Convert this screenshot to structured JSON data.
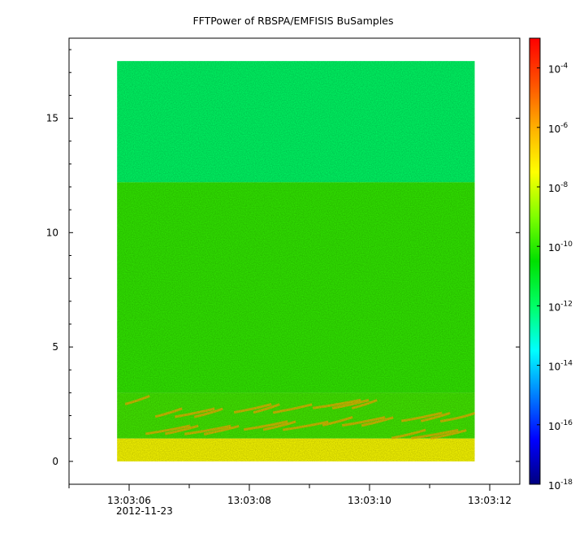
{
  "chart_data": {
    "type": "heatmap",
    "title": "FFTPower of RBSPA/EMFISIS  BuSamples",
    "xlabel": "",
    "ylabel": "",
    "x_axis": {
      "kind": "time",
      "ticks": [
        "13:03:06",
        "13:03:08",
        "13:03:10",
        "13:03:12"
      ],
      "date_label": "2012-11-23",
      "minor_tick_interval_s": 1,
      "range": [
        "13:03:05",
        "13:03:12.5"
      ]
    },
    "y_axis": {
      "ticks": [
        0,
        5,
        10,
        15
      ],
      "range": [
        -1,
        18.5
      ]
    },
    "data_extent": {
      "x": [
        "13:03:05.8",
        "13:03:11.75"
      ],
      "y": [
        0,
        17.5
      ]
    },
    "colorbar": {
      "scale": "log",
      "range": [
        1e-18,
        0.001
      ],
      "colormap": "rainbow",
      "colors": [
        "#00007f",
        "#0000ff",
        "#007fff",
        "#00ffff",
        "#00ff66",
        "#00e000",
        "#7fff00",
        "#ffff00",
        "#ffaf00",
        "#ff5000",
        "#ff0000"
      ],
      "ticks": [
        {
          "base": "10",
          "exp": "-4"
        },
        {
          "base": "10",
          "exp": "-6"
        },
        {
          "base": "10",
          "exp": "-8"
        },
        {
          "base": "10",
          "exp": "-10"
        },
        {
          "base": "10",
          "exp": "-12"
        },
        {
          "base": "10",
          "exp": "-14"
        },
        {
          "base": "10",
          "exp": "-16"
        },
        {
          "base": "10",
          "exp": "-18"
        }
      ]
    },
    "power_bands": [
      {
        "y_range": [
          12.2,
          17.5
        ],
        "typical_power": 1e-12,
        "color": "#00ff66"
      },
      {
        "y_range": [
          3.0,
          12.2
        ],
        "typical_power": 1e-10,
        "color": "#33ee00"
      },
      {
        "y_range": [
          1.0,
          3.0
        ],
        "typical_power": 1e-10,
        "note": "chorus-like rising streaks up to 1e-8",
        "color": "#44ee00",
        "streak_color": "#ffb400"
      },
      {
        "y_range": [
          0,
          1.0
        ],
        "typical_power": 1e-08,
        "color": "#ffff00"
      }
    ]
  }
}
